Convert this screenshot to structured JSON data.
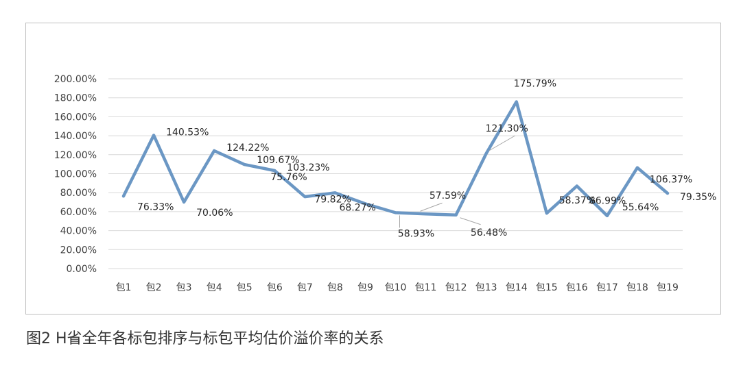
{
  "caption": "图2   H省全年各标包排序与标包平均估价溢价率的关系",
  "chart_data": {
    "type": "line",
    "categories": [
      "包1",
      "包2",
      "包3",
      "包4",
      "包5",
      "包6",
      "包7",
      "包8",
      "包9",
      "包10",
      "包11",
      "包12",
      "包13",
      "包14",
      "包15",
      "包16",
      "包17",
      "包18",
      "包19"
    ],
    "series": [
      {
        "values": [
          76.33,
          140.53,
          70.06,
          124.22,
          109.67,
          103.23,
          75.76,
          79.82,
          68.27,
          58.93,
          57.59,
          56.48,
          121.3,
          175.79,
          58.37,
          86.99,
          55.64,
          106.37,
          79.35
        ],
        "labels": [
          "76.33%",
          "140.53%",
          "70.06%",
          "124.22%",
          "109.67%",
          "103.23%",
          "75.76%",
          "79.82%",
          "68.27%",
          "58.93%",
          "57.59%",
          "56.48%",
          "121.30%",
          "175.79%",
          "58.37%",
          "86.99%",
          "55.64%",
          "106.37%",
          "79.35%"
        ],
        "color": "#6b97c4"
      }
    ],
    "y_ticks": [
      "0.00%",
      "20.00%",
      "40.00%",
      "60.00%",
      "80.00%",
      "100.00%",
      "120.00%",
      "140.00%",
      "160.00%",
      "180.00%",
      "200.00%"
    ],
    "ylim": [
      0,
      200
    ],
    "grid": true,
    "gridline_color": "#d9d9d9"
  }
}
